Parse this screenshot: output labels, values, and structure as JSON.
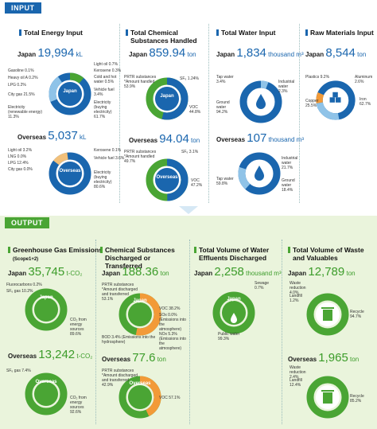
{
  "input": {
    "tag": "INPUT",
    "energy": {
      "title": "Total Energy Input",
      "japan": {
        "label": "Japan",
        "value": "19,994",
        "unit": "kL",
        "center": "Japan",
        "items": [
          "Light oil 0.7%",
          "Kerosene 0.3%",
          "Gasoline 0.1%",
          "Cold and hot water 0.5%",
          "Heavy oil A 0.2%",
          "Vehicle fuel 3.4%",
          "LPG 0.2%",
          "City gas 21.5%",
          "Electricity (buying electricity) 61.7%",
          "Electricity (renewable energy) 11.3%"
        ]
      },
      "overseas": {
        "label": "Overseas",
        "value": "5,037",
        "unit": "kL",
        "center": "Overseas",
        "items": [
          "Light oil 3.2%",
          "Kerosene 0.1%",
          "LNG 0.0%",
          "Vehicle fuel 3.6%",
          "LPG 12.4%",
          "City gas 0.0%",
          "Electricity (buying electricity) 80.6%"
        ]
      }
    },
    "chemical": {
      "title": "Total Chemical Substances Handled",
      "japan": {
        "label": "Japan",
        "value": "859.94",
        "unit": "ton",
        "center": "Japan",
        "items": [
          "PRTR substances *Amount handled 53.9%",
          "SF₆ 1.24%",
          "VOC 44.8%"
        ]
      },
      "overseas": {
        "label": "Overseas",
        "value": "94.04",
        "unit": "ton",
        "center": "Overseas",
        "items": [
          "PRTR substances *Amount handled 49.7%",
          "SF₆ 3.1%",
          "VOC 47.2%"
        ]
      }
    },
    "water": {
      "title": "Total Water Input",
      "japan": {
        "label": "Japan",
        "value": "1,834",
        "unit": "thousand m³",
        "center": "Japan",
        "items": [
          "Tap water 3.4%",
          "Industrial water 2.3%",
          "Ground water 94.2%"
        ]
      },
      "overseas": {
        "label": "Overseas",
        "value": "107",
        "unit": "thousand m³",
        "center": "Overseas",
        "items": [
          "Industrial water 21.7%",
          "Tap water 59.8%",
          "Ground water 18.4%"
        ]
      }
    },
    "raw": {
      "title": "Raw Materials Input",
      "japan": {
        "label": "Japan",
        "value": "8,544",
        "unit": "ton",
        "center": "Japan",
        "items": [
          "Plastics 9.2%",
          "Aluminum 2.6%",
          "Copper 25.5%",
          "Iron 62.7%"
        ]
      }
    }
  },
  "output": {
    "tag": "OUTPUT",
    "ghg": {
      "title": "Greenhouse Gas Emissions",
      "subtitle": "(Scope1+2)",
      "japan": {
        "label": "Japan",
        "value": "35,745",
        "unit": "t-CO₂",
        "center": "Japan",
        "items": [
          "Fluorocarbons 0.2%",
          "SF₆ gas 10.2%",
          "CO₂ from energy sources 89.6%"
        ]
      },
      "overseas": {
        "label": "Overseas",
        "value": "13,242",
        "unit": "t-CO₂",
        "center": "Overseas",
        "items": [
          "SF₆ gas 7.4%",
          "CO₂ from energy sources 92.6%"
        ]
      }
    },
    "chemdis": {
      "title": "Chemical Substances Discharged or Transferred",
      "japan": {
        "label": "Japan",
        "value": "188.36",
        "unit": "ton",
        "center": "Japan",
        "items": [
          "PRTR substances *Amount discharged and transferred 53.1%",
          "VOC 38.2%",
          "SOx 0.0% (Emissions into the atmosphere)",
          "BOD 3.4% (Emissions into the hydrosphere)",
          "NOx 5.3% (Emissions into the atmosphere)"
        ]
      },
      "overseas": {
        "label": "Overseas",
        "value": "77.6",
        "unit": "ton",
        "center": "Overseas",
        "items": [
          "PRTR substances *Amount discharged and transferred 42.9%",
          "VOC 57.1%"
        ]
      }
    },
    "effluent": {
      "title": "Total Volume of Water Effluents Discharged",
      "japan": {
        "label": "Japan",
        "value": "2,258",
        "unit": "thousand m³",
        "center": "Japan",
        "items": [
          "Sewage 0.7%",
          "Public water 99.3%"
        ]
      }
    },
    "waste": {
      "title": "Total Volume of Waste and Valuables",
      "japan": {
        "label": "Japan",
        "value": "12,789",
        "unit": "ton",
        "center": "Japan",
        "items": [
          "Waste reduction 4.0%",
          "Landfill 1.2%",
          "Recycle 94.7%"
        ]
      },
      "overseas": {
        "label": "Overseas",
        "value": "1,965",
        "unit": "ton",
        "center": "Overseas",
        "items": [
          "Waste reduction 2.4%",
          "Landfill 12.4%",
          "Recycle 85.2%"
        ]
      }
    }
  },
  "colors": {
    "blue": "#1a66ae",
    "green": "#4aa534",
    "light_blue": "#8fc3e8",
    "orange": "#f29a38",
    "pale_blue": "#d6e8f5"
  }
}
